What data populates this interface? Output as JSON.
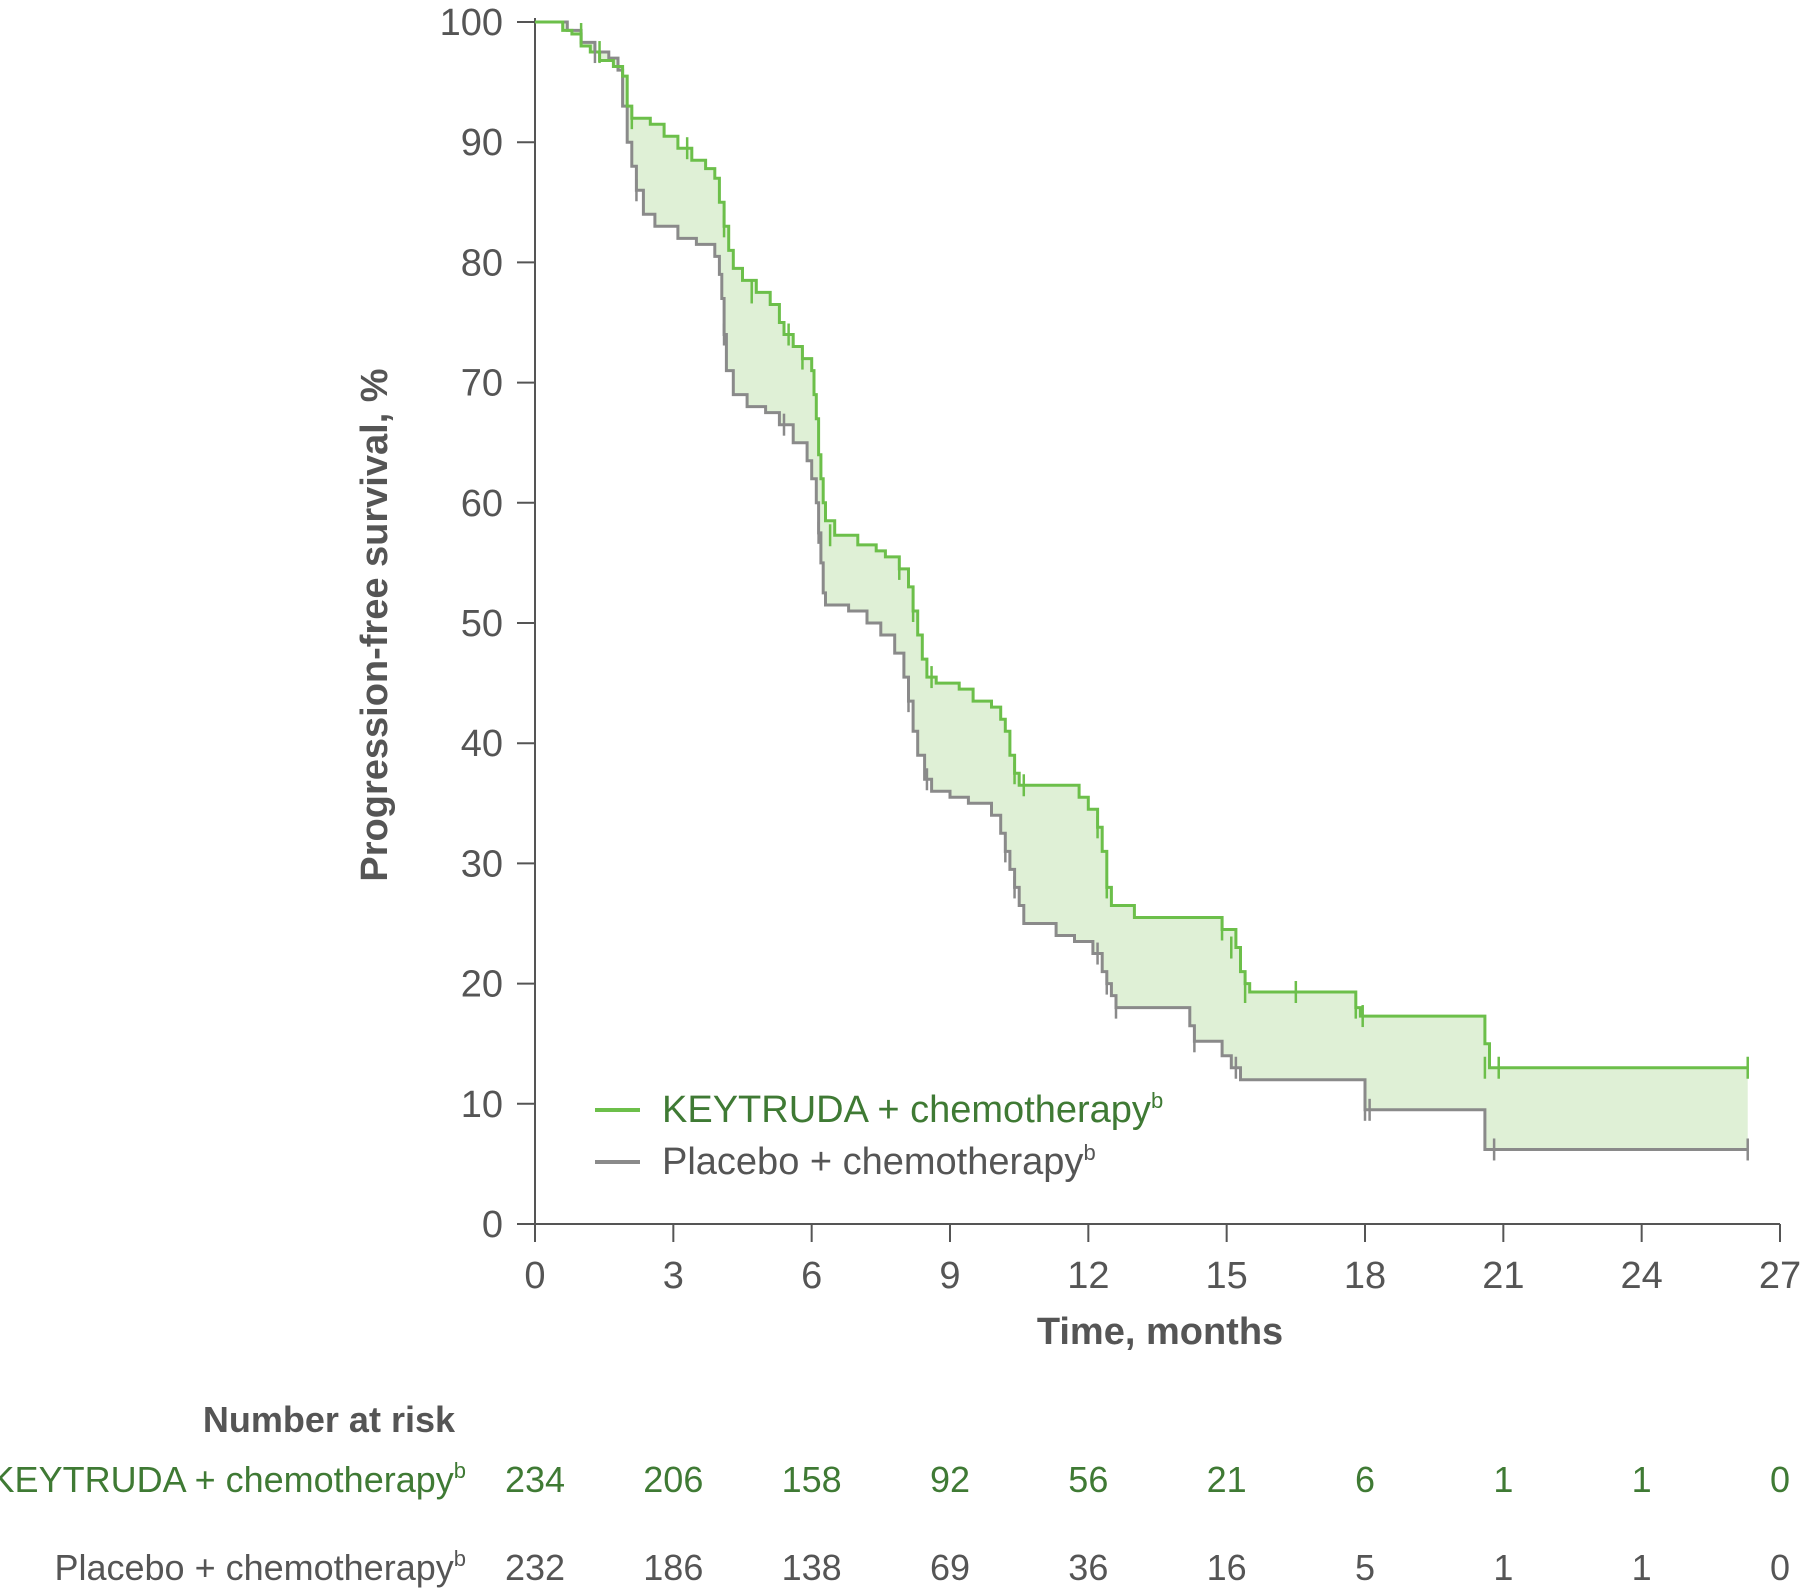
{
  "colors": {
    "keytruda": "#6cbf4a",
    "keytruda_text": "#3f7a34",
    "placebo": "#8a8a8a",
    "placebo_text": "#555555",
    "fill": "#dff0d6",
    "axis": "#555555"
  },
  "chart_data": {
    "type": "line",
    "subtype": "kaplan-meier",
    "title": "",
    "xlabel": "Time, months",
    "ylabel": "Progression-free survival, %",
    "xlim": [
      0,
      27
    ],
    "ylim": [
      0,
      100
    ],
    "x_ticks": [
      "0",
      "3",
      "6",
      "9",
      "12",
      "15",
      "18",
      "21",
      "24",
      "27"
    ],
    "y_ticks": [
      "0",
      "10",
      "20",
      "30",
      "40",
      "50",
      "60",
      "70",
      "80",
      "90",
      "100"
    ],
    "grid": false,
    "legend_position": "bottom-left",
    "shaded_region_between_series": true,
    "series": [
      {
        "name": "KEYTRUDA + chemotherapy",
        "name_superscript": "b",
        "color_key": "keytruda",
        "points": [
          [
            0,
            100
          ],
          [
            0.4,
            100
          ],
          [
            0.6,
            99.3
          ],
          [
            0.8,
            99
          ],
          [
            1.0,
            98
          ],
          [
            1.2,
            97.5
          ],
          [
            1.4,
            96.8
          ],
          [
            1.7,
            96.3
          ],
          [
            1.9,
            95.5
          ],
          [
            2.0,
            93
          ],
          [
            2.1,
            92
          ],
          [
            2.5,
            91.5
          ],
          [
            2.8,
            90.5
          ],
          [
            3.1,
            89.5
          ],
          [
            3.4,
            88.5
          ],
          [
            3.7,
            87.8
          ],
          [
            3.9,
            87
          ],
          [
            4.0,
            85
          ],
          [
            4.1,
            83
          ],
          [
            4.2,
            81
          ],
          [
            4.3,
            79.5
          ],
          [
            4.5,
            78.5
          ],
          [
            4.8,
            77.5
          ],
          [
            5.1,
            76.5
          ],
          [
            5.3,
            75
          ],
          [
            5.4,
            74
          ],
          [
            5.6,
            73
          ],
          [
            5.8,
            72
          ],
          [
            6.0,
            71
          ],
          [
            6.05,
            69
          ],
          [
            6.1,
            67
          ],
          [
            6.15,
            64
          ],
          [
            6.2,
            62
          ],
          [
            6.25,
            60
          ],
          [
            6.3,
            58.5
          ],
          [
            6.5,
            57.3
          ],
          [
            7.0,
            56.5
          ],
          [
            7.4,
            56
          ],
          [
            7.6,
            55.5
          ],
          [
            7.9,
            54.5
          ],
          [
            8.1,
            53
          ],
          [
            8.2,
            51
          ],
          [
            8.3,
            49
          ],
          [
            8.4,
            47
          ],
          [
            8.5,
            45.5
          ],
          [
            8.7,
            45
          ],
          [
            9.2,
            44.5
          ],
          [
            9.5,
            43.5
          ],
          [
            9.9,
            43
          ],
          [
            10.1,
            42
          ],
          [
            10.2,
            41
          ],
          [
            10.3,
            39
          ],
          [
            10.4,
            37.5
          ],
          [
            10.5,
            36.5
          ],
          [
            11.5,
            36.5
          ],
          [
            11.8,
            35.5
          ],
          [
            12.0,
            34.5
          ],
          [
            12.2,
            33
          ],
          [
            12.3,
            31
          ],
          [
            12.4,
            28
          ],
          [
            12.5,
            26.5
          ],
          [
            13.0,
            25.5
          ],
          [
            14.7,
            25.5
          ],
          [
            14.9,
            24.5
          ],
          [
            15.2,
            23
          ],
          [
            15.3,
            21
          ],
          [
            15.4,
            20
          ],
          [
            15.5,
            19.3
          ],
          [
            17.7,
            19.3
          ],
          [
            17.8,
            18
          ],
          [
            17.9,
            17.3
          ],
          [
            20.5,
            17.3
          ],
          [
            20.6,
            15
          ],
          [
            20.7,
            13
          ],
          [
            26.3,
            13
          ]
        ]
      },
      {
        "name": "Placebo + chemotherapy",
        "name_superscript": "b",
        "color_key": "placebo",
        "points": [
          [
            0,
            100
          ],
          [
            0.4,
            100
          ],
          [
            0.7,
            99.3
          ],
          [
            1.0,
            98.3
          ],
          [
            1.3,
            97.5
          ],
          [
            1.6,
            97
          ],
          [
            1.8,
            96
          ],
          [
            1.9,
            93
          ],
          [
            2.0,
            90
          ],
          [
            2.1,
            88
          ],
          [
            2.2,
            86
          ],
          [
            2.35,
            84
          ],
          [
            2.6,
            83
          ],
          [
            3.1,
            82
          ],
          [
            3.5,
            81.5
          ],
          [
            3.9,
            80.5
          ],
          [
            4.0,
            79
          ],
          [
            4.05,
            77
          ],
          [
            4.1,
            74
          ],
          [
            4.15,
            71
          ],
          [
            4.3,
            69
          ],
          [
            4.6,
            68
          ],
          [
            5.0,
            67.5
          ],
          [
            5.3,
            66.5
          ],
          [
            5.6,
            65
          ],
          [
            5.9,
            63.5
          ],
          [
            6.0,
            62
          ],
          [
            6.1,
            60
          ],
          [
            6.15,
            57.5
          ],
          [
            6.2,
            55
          ],
          [
            6.25,
            52.5
          ],
          [
            6.3,
            51.5
          ],
          [
            6.8,
            51
          ],
          [
            7.2,
            50
          ],
          [
            7.5,
            49
          ],
          [
            7.8,
            47.5
          ],
          [
            8.0,
            45.5
          ],
          [
            8.1,
            43.5
          ],
          [
            8.2,
            41
          ],
          [
            8.3,
            39
          ],
          [
            8.45,
            37
          ],
          [
            8.6,
            36
          ],
          [
            9.0,
            35.5
          ],
          [
            9.4,
            35
          ],
          [
            9.9,
            34
          ],
          [
            10.1,
            32.5
          ],
          [
            10.2,
            31
          ],
          [
            10.3,
            29.5
          ],
          [
            10.4,
            28
          ],
          [
            10.5,
            26.5
          ],
          [
            10.6,
            25
          ],
          [
            11.3,
            24
          ],
          [
            11.7,
            23.5
          ],
          [
            12.1,
            22.5
          ],
          [
            12.3,
            21
          ],
          [
            12.4,
            20
          ],
          [
            12.5,
            19
          ],
          [
            12.6,
            18
          ],
          [
            13.6,
            18
          ],
          [
            14.2,
            16.5
          ],
          [
            14.3,
            15.2
          ],
          [
            14.9,
            14
          ],
          [
            15.1,
            13
          ],
          [
            15.3,
            12
          ],
          [
            17.9,
            12
          ],
          [
            18.0,
            9.5
          ],
          [
            20.5,
            9.5
          ],
          [
            20.6,
            6.2
          ],
          [
            26.3,
            6.2
          ]
        ]
      }
    ],
    "censor_marks": {
      "keytruda": [
        1.0,
        1.4,
        2.1,
        3.3,
        4.1,
        4.7,
        5.5,
        5.8,
        6.4,
        7.9,
        8.2,
        8.6,
        10.4,
        10.6,
        12.2,
        12.4,
        14.9,
        15.1,
        15.4,
        16.5,
        17.8,
        17.95,
        20.6,
        20.9,
        26.3
      ],
      "keytruda_levels": [
        99,
        97.5,
        92,
        89.5,
        83,
        77.5,
        74,
        72,
        57.3,
        54.5,
        51,
        45.5,
        37.5,
        36.5,
        33,
        28,
        24.5,
        23,
        19.3,
        19.3,
        18,
        17.3,
        13,
        13,
        13
      ],
      "placebo": [
        1.3,
        2.2,
        4.1,
        5.4,
        6.15,
        8.1,
        8.5,
        10.2,
        10.4,
        12.2,
        12.4,
        12.6,
        14.3,
        15.2,
        18.0,
        18.1,
        20.8,
        26.3
      ],
      "placebo_levels": [
        97.5,
        86,
        74,
        66.5,
        57.5,
        43.5,
        37,
        31,
        28,
        22.5,
        20,
        18,
        15.2,
        13,
        9.5,
        9.5,
        6.2,
        6.2
      ]
    }
  },
  "legend": {
    "keytruda_label": "KEYTRUDA + chemotherapy",
    "placebo_label": "Placebo + chemotherapy",
    "superscript": "b"
  },
  "risk_table": {
    "title": "Number at risk",
    "rows": [
      {
        "label": "KEYTRUDA + chemotherapy",
        "superscript": "b",
        "color_key": "keytruda_text",
        "values": [
          "234",
          "206",
          "158",
          "92",
          "56",
          "21",
          "6",
          "1",
          "1",
          "0"
        ]
      },
      {
        "label": "Placebo + chemotherapy",
        "superscript": "b",
        "color_key": "placebo_text",
        "values": [
          "232",
          "186",
          "138",
          "69",
          "36",
          "16",
          "5",
          "1",
          "1",
          "0"
        ]
      }
    ]
  }
}
